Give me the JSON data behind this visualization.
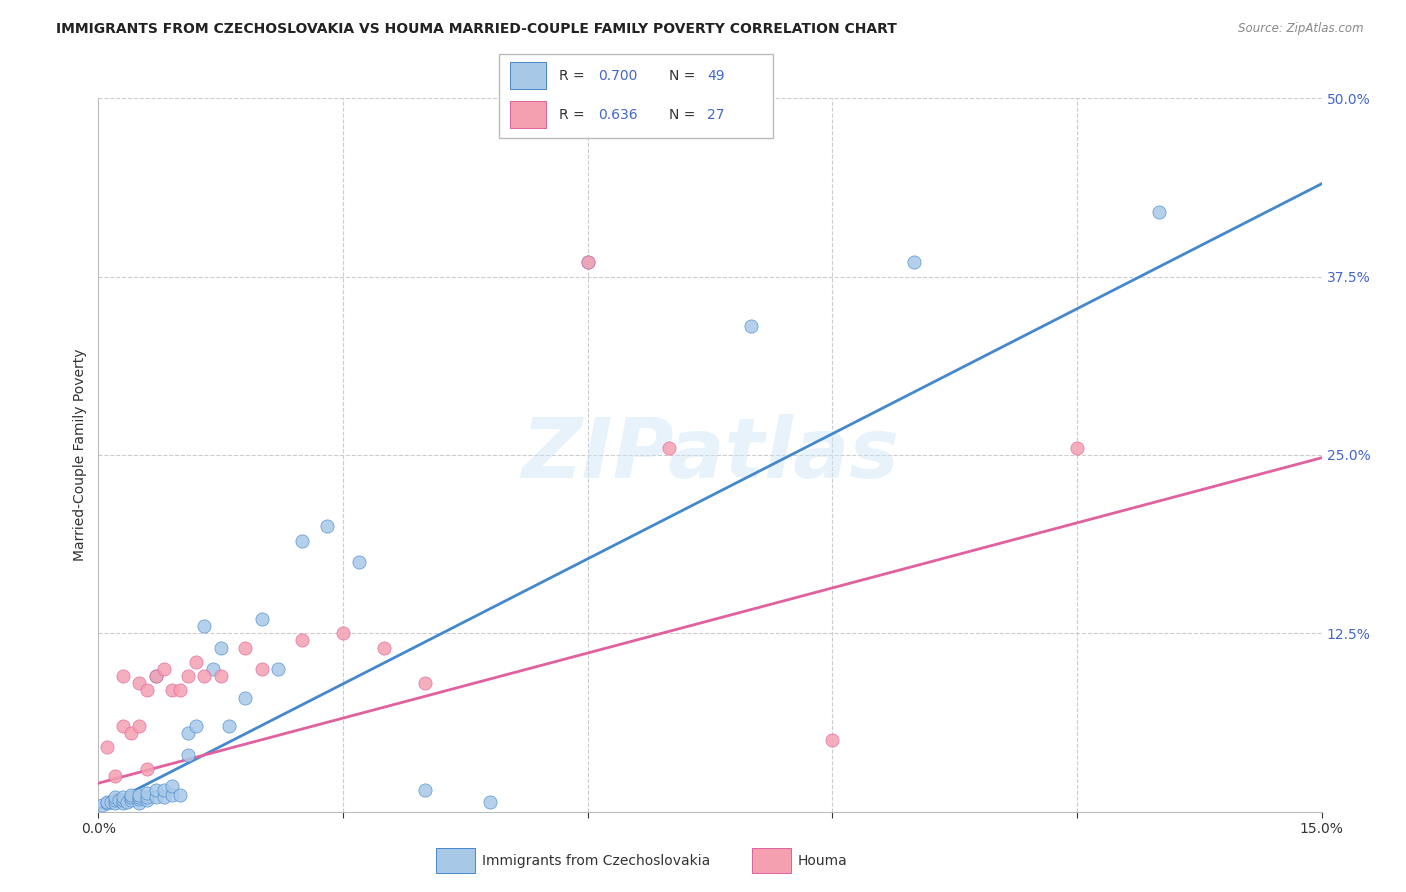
{
  "title": "IMMIGRANTS FROM CZECHOSLOVAKIA VS HOUMA MARRIED-COUPLE FAMILY POVERTY CORRELATION CHART",
  "source": "Source: ZipAtlas.com",
  "ylabel": "Married-Couple Family Poverty",
  "xlim": [
    0.0,
    0.15
  ],
  "ylim": [
    0.0,
    0.5
  ],
  "ytick_values": [
    0.125,
    0.25,
    0.375,
    0.5
  ],
  "xtick_positions": [
    0.0,
    0.03,
    0.06,
    0.09,
    0.12,
    0.15
  ],
  "watermark": "ZIPatlas",
  "legend_r1": "0.700",
  "legend_n1": "49",
  "legend_r2": "0.636",
  "legend_n2": "27",
  "blue_color": "#a8c8e8",
  "blue_line_color": "#4488cc",
  "pink_color": "#f4a0b0",
  "pink_line_color": "#e060a0",
  "label_color": "#4466cc",
  "blue_scatter_x": [
    0.0005,
    0.001,
    0.001,
    0.0015,
    0.002,
    0.002,
    0.002,
    0.0025,
    0.003,
    0.003,
    0.003,
    0.0035,
    0.004,
    0.004,
    0.004,
    0.005,
    0.005,
    0.005,
    0.005,
    0.006,
    0.006,
    0.006,
    0.007,
    0.007,
    0.007,
    0.008,
    0.008,
    0.009,
    0.009,
    0.01,
    0.011,
    0.011,
    0.012,
    0.013,
    0.014,
    0.015,
    0.016,
    0.018,
    0.02,
    0.022,
    0.025,
    0.028,
    0.032,
    0.04,
    0.048,
    0.06,
    0.08,
    0.1,
    0.13
  ],
  "blue_scatter_y": [
    0.005,
    0.006,
    0.007,
    0.007,
    0.006,
    0.008,
    0.01,
    0.008,
    0.006,
    0.008,
    0.01,
    0.007,
    0.008,
    0.01,
    0.012,
    0.006,
    0.009,
    0.01,
    0.012,
    0.008,
    0.01,
    0.013,
    0.01,
    0.015,
    0.095,
    0.01,
    0.015,
    0.012,
    0.018,
    0.012,
    0.04,
    0.055,
    0.06,
    0.13,
    0.1,
    0.115,
    0.06,
    0.08,
    0.135,
    0.1,
    0.19,
    0.2,
    0.175,
    0.015,
    0.007,
    0.385,
    0.34,
    0.385,
    0.42
  ],
  "pink_scatter_x": [
    0.001,
    0.002,
    0.003,
    0.003,
    0.004,
    0.005,
    0.005,
    0.006,
    0.006,
    0.007,
    0.008,
    0.009,
    0.01,
    0.011,
    0.012,
    0.013,
    0.015,
    0.018,
    0.02,
    0.025,
    0.03,
    0.035,
    0.04,
    0.06,
    0.07,
    0.09,
    0.12
  ],
  "pink_scatter_y": [
    0.045,
    0.025,
    0.06,
    0.095,
    0.055,
    0.06,
    0.09,
    0.03,
    0.085,
    0.095,
    0.1,
    0.085,
    0.085,
    0.095,
    0.105,
    0.095,
    0.095,
    0.115,
    0.1,
    0.12,
    0.125,
    0.115,
    0.09,
    0.385,
    0.255,
    0.05,
    0.255
  ],
  "blue_line_x": [
    0.0,
    0.15
  ],
  "blue_line_y": [
    0.002,
    0.44
  ],
  "pink_line_x": [
    0.0,
    0.15
  ],
  "pink_line_y": [
    0.02,
    0.248
  ]
}
